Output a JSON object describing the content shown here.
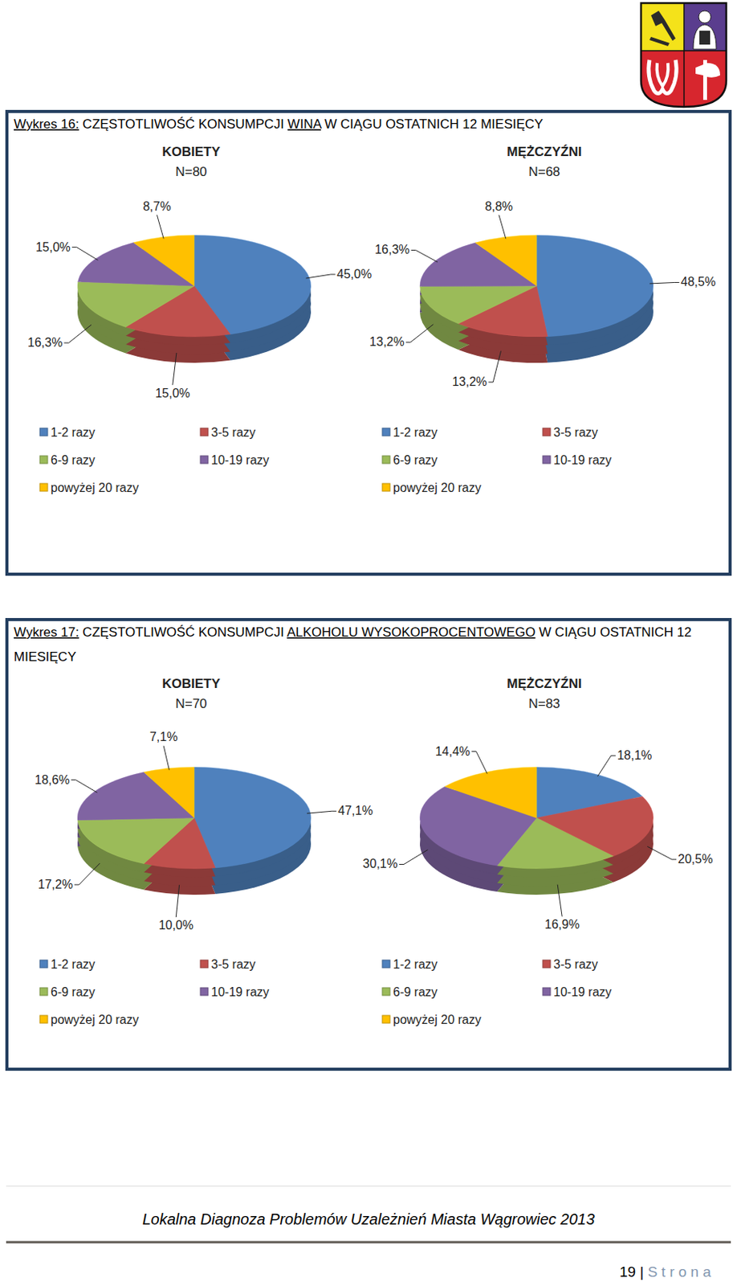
{
  "figures": [
    {
      "title": [
        {
          "text": "Wykres 16:",
          "underline": true
        },
        {
          "text": "CZĘSTOTLIWOŚĆ KONSUMPCJI",
          "underline": false
        },
        {
          "text": "WINA",
          "underline": true
        },
        {
          "text": "W CIĄGU OSTATNICH 12 MIESIĘCY",
          "underline": false
        }
      ]
    },
    {
      "title": [
        {
          "text": "Wykres 17:",
          "underline": true
        },
        {
          "text": "CZĘSTOTLIWOŚĆ KONSUMPCJI",
          "underline": false
        },
        {
          "text": "ALKOHOLU WYSOKOPROCENTOWEGO",
          "underline": true
        },
        {
          "text": "W CIĄGU OSTATNICH 12 MIESIĘCY",
          "underline": false
        }
      ]
    }
  ],
  "chart_data": [
    {
      "type": "pie",
      "title": "KOBIETY",
      "subtitle": "N=80",
      "categories": [
        "1-2 razy",
        "3-5 razy",
        "6-9 razy",
        "10-19 razy",
        "powyżej 20 razy"
      ],
      "values": [
        45.0,
        15.0,
        16.3,
        15.0,
        8.7
      ],
      "value_labels": [
        "45,0%",
        "15,0%",
        "16,3%",
        "15,0%",
        "8,7%"
      ],
      "colors": [
        "#4f81bd",
        "#c0504d",
        "#9bbb59",
        "#8064a2",
        "#ffc000"
      ],
      "data_labels": true,
      "legend": "bottom"
    },
    {
      "type": "pie",
      "title": "MĘŻCZYŹNI",
      "subtitle": "N=68",
      "categories": [
        "1-2 razy",
        "3-5 razy",
        "6-9 razy",
        "10-19 razy",
        "powyżej 20 razy"
      ],
      "values": [
        48.5,
        13.2,
        13.2,
        16.3,
        8.8
      ],
      "value_labels": [
        "48,5%",
        "13,2%",
        "13,2%",
        "16,3%",
        "8,8%"
      ],
      "colors": [
        "#4f81bd",
        "#c0504d",
        "#9bbb59",
        "#8064a2",
        "#ffc000"
      ],
      "data_labels": true,
      "legend": "bottom"
    },
    {
      "type": "pie",
      "title": "KOBIETY",
      "subtitle": "N=70",
      "categories": [
        "1-2 razy",
        "3-5 razy",
        "6-9 razy",
        "10-19 razy",
        "powyżej 20 razy"
      ],
      "values": [
        47.1,
        10.0,
        17.2,
        18.6,
        7.1
      ],
      "value_labels": [
        "47,1%",
        "10,0%",
        "17,2%",
        "18,6%",
        "7,1%"
      ],
      "colors": [
        "#4f81bd",
        "#c0504d",
        "#9bbb59",
        "#8064a2",
        "#ffc000"
      ],
      "data_labels": true,
      "legend": "bottom"
    },
    {
      "type": "pie",
      "title": "MĘŻCZYŹNI",
      "subtitle": "N=83",
      "categories": [
        "1-2 razy",
        "3-5 razy",
        "6-9 razy",
        "10-19 razy",
        "powyżej 20 razy"
      ],
      "values": [
        18.1,
        20.5,
        16.9,
        30.1,
        14.4
      ],
      "value_labels": [
        "18,1%",
        "20,5%",
        "16,9%",
        "30,1%",
        "14,4%"
      ],
      "colors": [
        "#4f81bd",
        "#c0504d",
        "#9bbb59",
        "#8064a2",
        "#ffc000"
      ],
      "data_labels": true,
      "legend": "bottom"
    }
  ],
  "footer": {
    "text": "Lokalna Diagnoza Problemów Uzależnień Miasta Wągrowiec 2013",
    "page_number": "19",
    "separator": "|",
    "page_word": "S t r o n a"
  }
}
